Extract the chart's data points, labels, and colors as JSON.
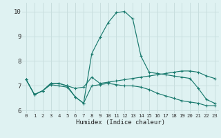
{
  "bg_color": "#dff2f2",
  "grid_color": "#c8dede",
  "line_color": "#1a7a6e",
  "xlabel": "Humidex (Indice chaleur)",
  "xlim": [
    -0.5,
    23.5
  ],
  "ylim": [
    5.9,
    10.35
  ],
  "yticks": [
    6,
    7,
    8,
    9,
    10
  ],
  "xticks": [
    0,
    1,
    2,
    3,
    4,
    5,
    6,
    7,
    8,
    9,
    10,
    11,
    12,
    13,
    14,
    15,
    16,
    17,
    18,
    19,
    20,
    21,
    22,
    23
  ],
  "series": [
    {
      "x": [
        0,
        1,
        2,
        3,
        4,
        5,
        6,
        7,
        8,
        9,
        10,
        11,
        12,
        13,
        14,
        15,
        16,
        17,
        18,
        19,
        20,
        21,
        22,
        23
      ],
      "y": [
        7.25,
        6.65,
        6.8,
        7.1,
        7.1,
        7.0,
        6.55,
        6.3,
        8.3,
        8.95,
        9.55,
        9.95,
        10.0,
        9.7,
        8.2,
        7.55,
        7.5,
        7.45,
        7.4,
        7.35,
        7.3,
        6.9,
        6.45,
        6.3
      ]
    },
    {
      "x": [
        0,
        1,
        2,
        3,
        4,
        5,
        6,
        7,
        8,
        9,
        10,
        11,
        12,
        13,
        14,
        15,
        16,
        17,
        18,
        19,
        20,
        21,
        22,
        23
      ],
      "y": [
        7.25,
        6.65,
        6.8,
        7.1,
        7.1,
        7.0,
        6.9,
        6.95,
        7.35,
        7.1,
        7.15,
        7.2,
        7.25,
        7.3,
        7.35,
        7.4,
        7.45,
        7.5,
        7.55,
        7.6,
        7.6,
        7.55,
        7.4,
        7.3
      ]
    },
    {
      "x": [
        0,
        1,
        2,
        3,
        4,
        5,
        6,
        7,
        8,
        9,
        10,
        11,
        12,
        13,
        14,
        15,
        16,
        17,
        18,
        19,
        20,
        21,
        22,
        23
      ],
      "y": [
        7.25,
        6.65,
        6.8,
        7.05,
        7.0,
        6.95,
        6.55,
        6.3,
        7.0,
        7.05,
        7.1,
        7.05,
        7.0,
        7.0,
        6.95,
        6.85,
        6.7,
        6.6,
        6.5,
        6.4,
        6.35,
        6.3,
        6.2,
        6.2
      ]
    }
  ]
}
